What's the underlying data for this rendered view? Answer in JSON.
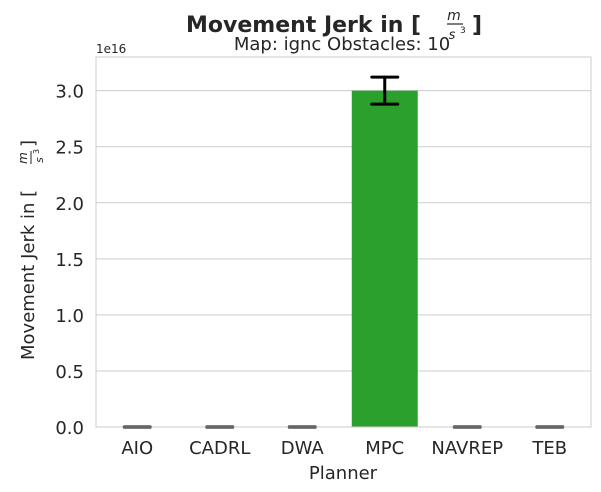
{
  "chart_data": {
    "type": "bar",
    "title": "Movement Jerk in [m/s³]",
    "title_prefix": "Movement Jerk in [",
    "title_suffix": "]",
    "unit_num": "m",
    "unit_den": "s",
    "unit_pow": "3",
    "subtitle": "Map: ignc Obstacles: 10",
    "xlabel": "Planner",
    "ylabel": "Movement Jerk in [m/s³]",
    "ylabel_prefix": "Movement Jerk in [",
    "ylabel_suffix": "]",
    "offset_text": "1e16",
    "categories": [
      "AIO",
      "CADRL",
      "DWA",
      "MPC",
      "NAVREP",
      "TEB"
    ],
    "values": [
      0,
      0,
      0,
      3.0,
      0,
      0
    ],
    "error_low": [
      0,
      0,
      0,
      2.88,
      0,
      0
    ],
    "error_high": [
      0,
      0,
      0,
      3.12,
      0,
      0
    ],
    "value_scale": "1e16",
    "ylim": [
      0,
      3.3
    ],
    "yticks": [
      "0.0",
      "0.5",
      "1.0",
      "1.5",
      "2.0",
      "2.5",
      "3.0"
    ],
    "ytick_values": [
      0,
      0.5,
      1.0,
      1.5,
      2.0,
      2.5,
      3.0
    ],
    "grid": "horizontal",
    "colors": [
      "#1f77b4",
      "#ff7f0e",
      "#d62728",
      "#2ca02c",
      "#9467bd",
      "#8c564b"
    ]
  }
}
